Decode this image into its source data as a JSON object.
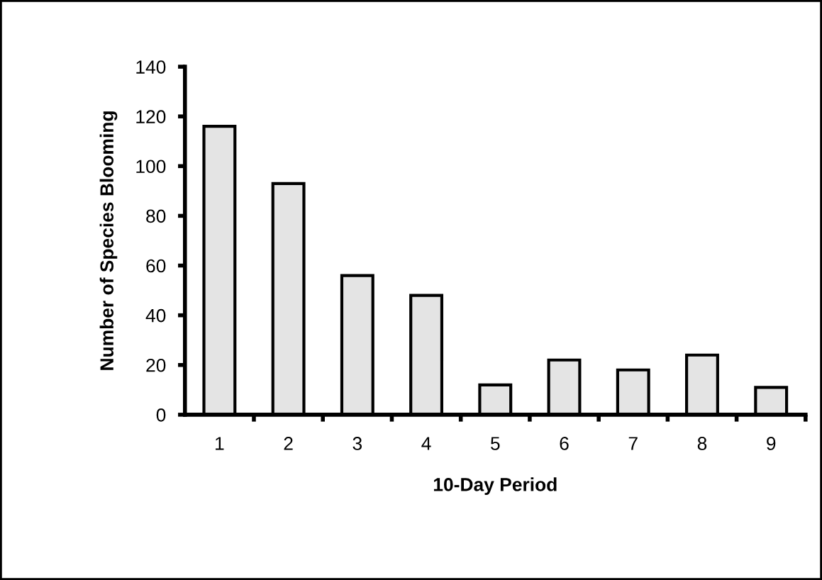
{
  "chart_data": {
    "type": "bar",
    "xlabel": "10-Day Period",
    "ylabel": "Number of Species Blooming",
    "categories": [
      "1",
      "2",
      "3",
      "4",
      "5",
      "6",
      "7",
      "8",
      "9"
    ],
    "values": [
      116,
      93,
      56,
      48,
      12,
      22,
      18,
      24,
      11
    ],
    "color": "#e4e4e4",
    "ylim": [
      0,
      140
    ],
    "yticks": [
      0,
      20,
      40,
      60,
      80,
      100,
      120,
      140
    ],
    "grid": false,
    "legend": false
  }
}
